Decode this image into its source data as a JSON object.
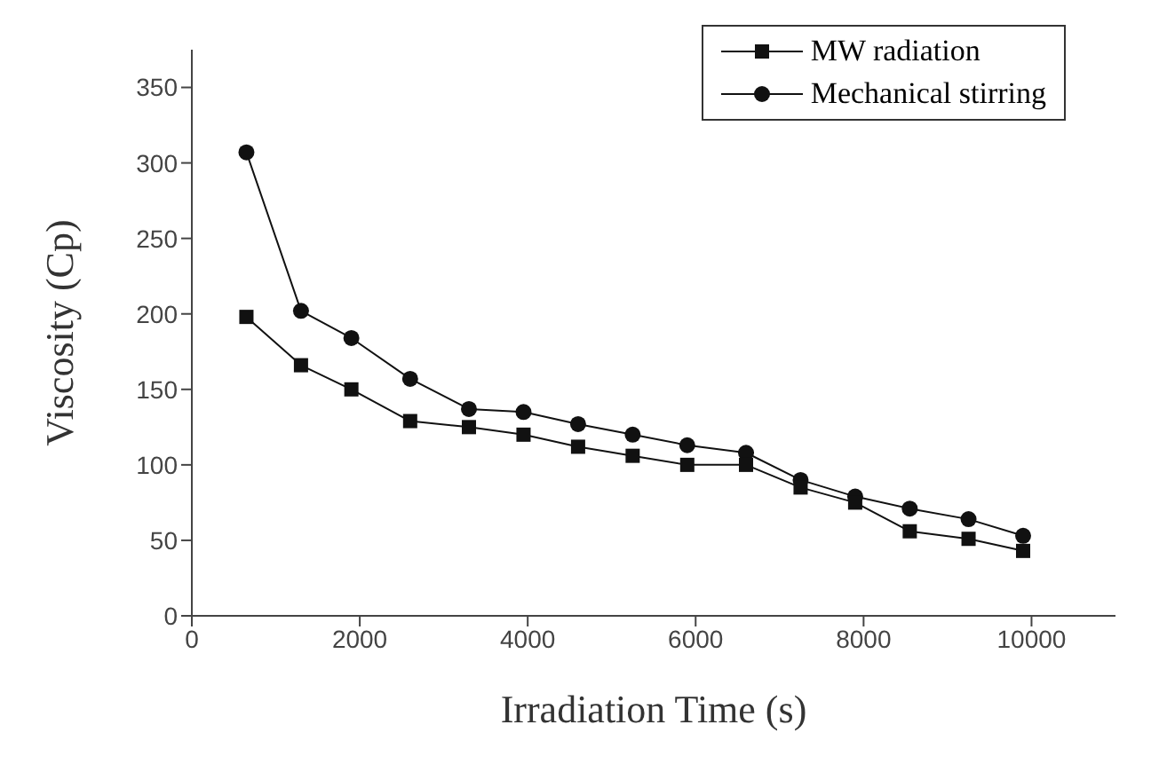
{
  "chart_data": {
    "type": "line",
    "xlabel": "Irradiation Time (s)",
    "ylabel": "Viscosity (Cp)",
    "x": [
      650,
      1300,
      1900,
      2600,
      3300,
      3950,
      4600,
      5250,
      5900,
      6600,
      7250,
      7900,
      8550,
      9250,
      9900
    ],
    "series": [
      {
        "name": "MW radiation",
        "color": "#111111",
        "marker": "square",
        "values": [
          198,
          166,
          150,
          129,
          125,
          120,
          112,
          106,
          100,
          100,
          85,
          75,
          56,
          51,
          43
        ]
      },
      {
        "name": "Mechanical stirring",
        "color": "#111111",
        "marker": "circle",
        "values": [
          307,
          202,
          184,
          157,
          137,
          135,
          127,
          120,
          113,
          108,
          90,
          79,
          71,
          64,
          53
        ]
      }
    ],
    "xlim": [
      0,
      11000
    ],
    "xticks": [
      0,
      2000,
      4000,
      6000,
      8000,
      10000
    ],
    "ylim": [
      0,
      375
    ],
    "yticks": [
      0,
      50,
      100,
      150,
      200,
      250,
      300,
      350
    ],
    "grid": false,
    "legend": "top right",
    "line_style": "solid"
  }
}
